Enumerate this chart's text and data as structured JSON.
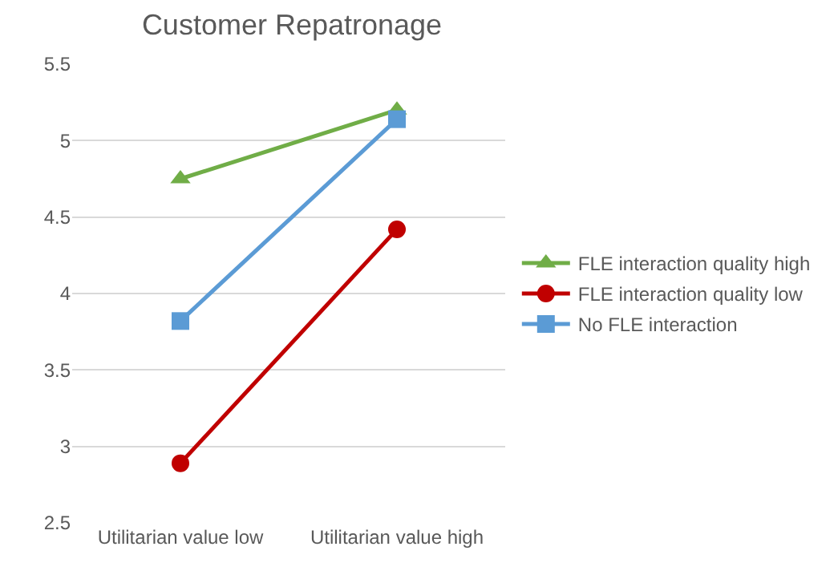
{
  "chart_data": {
    "type": "line",
    "title": "Customer Repatronage",
    "categories": [
      "Utilitarian value low",
      "Utilitarian value high"
    ],
    "series": [
      {
        "name": "FLE interaction quality high",
        "color": "#70ad47",
        "marker": "triangle",
        "values": [
          4.75,
          5.2
        ]
      },
      {
        "name": "FLE interaction quality low",
        "color": "#c00000",
        "marker": "circle",
        "values": [
          2.89,
          4.42
        ]
      },
      {
        "name": "No FLE interaction",
        "color": "#5b9bd5",
        "marker": "square",
        "values": [
          3.82,
          5.14
        ]
      }
    ],
    "ylim": [
      2.5,
      5.5
    ],
    "yticks": [
      2.5,
      3,
      3.5,
      4,
      4.5,
      5,
      5.5
    ],
    "grid": "y",
    "legend": "right",
    "line_style": "solid"
  }
}
